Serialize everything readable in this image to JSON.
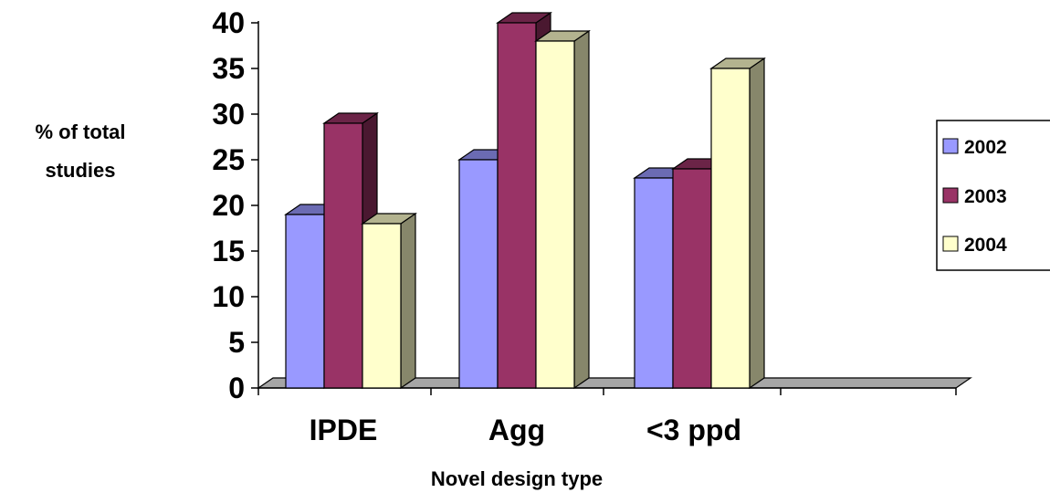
{
  "chart_data": {
    "type": "bar",
    "categories": [
      "IPDE",
      "Agg",
      "<3 ppd",
      ""
    ],
    "series": [
      {
        "name": "2002",
        "values": [
          19,
          25,
          23,
          null
        ]
      },
      {
        "name": "2003",
        "values": [
          29,
          40,
          24,
          null
        ]
      },
      {
        "name": "2004",
        "values": [
          18,
          38,
          35,
          null
        ]
      }
    ],
    "title": "",
    "xlabel": "Novel design type",
    "ylabel_lines": [
      "% of total",
      "studies"
    ],
    "ylim": [
      0,
      40
    ],
    "yticks": [
      0,
      5,
      10,
      15,
      20,
      25,
      30,
      35,
      40
    ],
    "grid": false,
    "legend": "right",
    "three_d": true
  },
  "colors": {
    "2002": {
      "front": "#9999ff",
      "top": "#6b6bb3",
      "side": "#474777"
    },
    "2003": {
      "front": "#993366",
      "top": "#6b2447",
      "side": "#4a1830"
    },
    "2004": {
      "front": "#ffffcc",
      "top": "#b3b38f",
      "side": "#87876b"
    },
    "floor": "#a6a6a6",
    "outline": "#000000"
  }
}
